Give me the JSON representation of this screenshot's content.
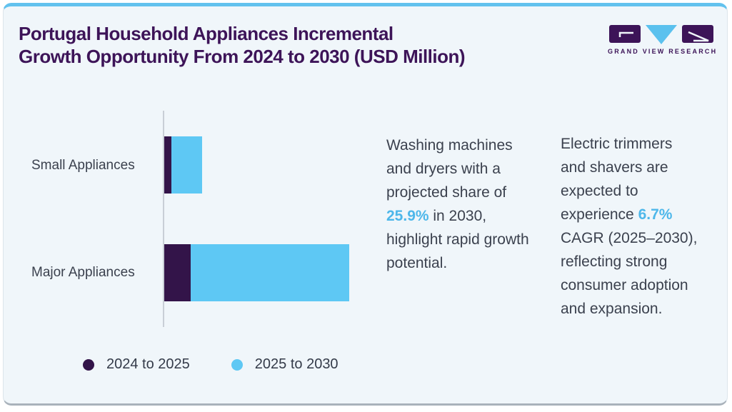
{
  "card": {
    "title_line1": "Portugal Household Appliances Incremental",
    "title_line2": "Growth Opportunity From 2024 to 2030 (USD Million)"
  },
  "logo": {
    "wordmark": "GRAND VIEW RESEARCH",
    "brand_purple": "#3d1458",
    "brand_blue": "#5bc1ee"
  },
  "chart_data": {
    "type": "bar",
    "orientation": "horizontal",
    "stacked": true,
    "title": "Portugal Household Appliances Incremental Growth Opportunity From 2024 to 2030 (USD Million)",
    "categories": [
      "Small Appliances",
      "Major Appliances"
    ],
    "series": [
      {
        "name": "2024 to 2025",
        "color": "#331449",
        "values": [
          10,
          37
        ]
      },
      {
        "name": "2025 to 2030",
        "color": "#5ec8f4",
        "values": [
          43,
          222
        ]
      }
    ],
    "value_axis": {
      "labeled": false,
      "note": "No tick labels or gridlines shown; values are relative magnitudes estimated from bar lengths (1 unit = 1 px)."
    },
    "legend_position": "bottom"
  },
  "insights": {
    "para1": {
      "before": "Washing machines and dryers with a projected share of ",
      "highlight": "25.9%",
      "after": " in 2030, highlight rapid growth potential."
    },
    "para2": {
      "before": "Electric trimmers and shavers are expected to experience ",
      "highlight": "6.7%",
      "after": " CAGR (2025–2030), reflecting strong consumer adoption and expansion."
    }
  },
  "colors": {
    "card_background": "#f0f6fa",
    "top_border": "#62c2ee",
    "title_text": "#3d1458",
    "body_text": "#3b414e",
    "highlight_text": "#4db7ea",
    "axis_line": "#c9cfd6",
    "series_2024_2025": "#331449",
    "series_2025_2030": "#5ec8f4"
  }
}
